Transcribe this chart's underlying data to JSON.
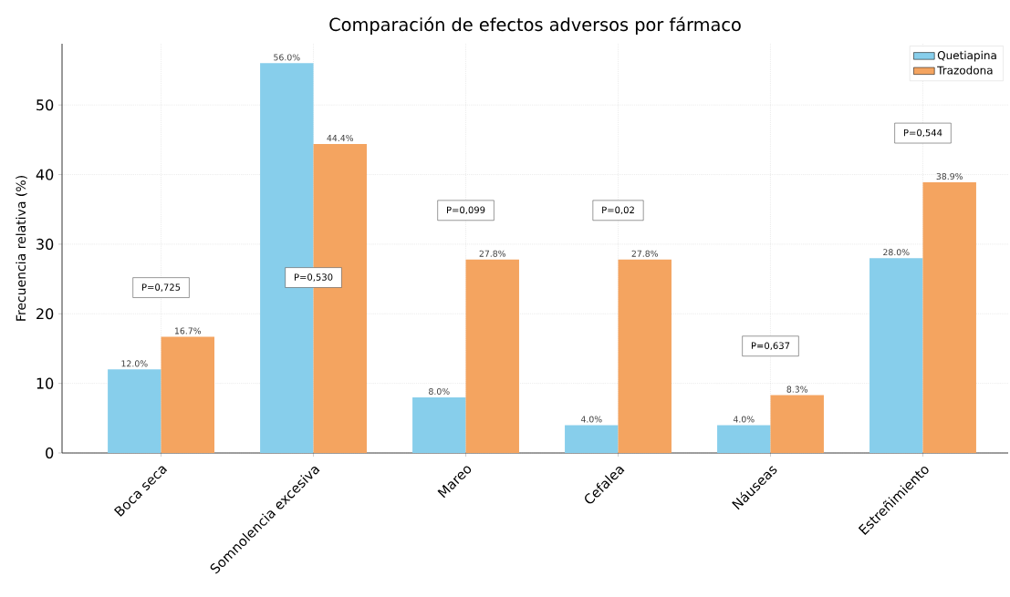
{
  "chart_data": {
    "type": "bar",
    "title": "Comparación de efectos adversos por fármaco",
    "ylabel": "Frecuencia relativa (%)",
    "categories": [
      "Boca seca",
      "Somnolencia excesiva",
      "Mareo",
      "Cefalea",
      "Náuseas",
      "Estreñimiento"
    ],
    "series": [
      {
        "name": "Quetiapina",
        "color": "#87ceeb",
        "values": [
          12.0,
          56.0,
          8.0,
          4.0,
          4.0,
          28.0
        ],
        "value_labels": [
          "12.0%",
          "56.0%",
          "8.0%",
          "4.0%",
          "4.0%",
          "28.0%"
        ]
      },
      {
        "name": "Trazodona",
        "color": "#f4a460",
        "values": [
          16.7,
          44.4,
          27.8,
          27.8,
          8.3,
          38.9
        ],
        "value_labels": [
          "16.7%",
          "44.4%",
          "27.8%",
          "27.8%",
          "8.3%",
          "38.9%"
        ]
      }
    ],
    "ylim": [
      0,
      58.8
    ],
    "yticks": [
      0,
      10,
      20,
      30,
      40,
      50
    ],
    "grid": true,
    "legend": "top right",
    "annotations": [
      "P=0,725",
      "P=0,530",
      "P=0,099",
      "P=0,02",
      "P=0,637",
      "P=0,544"
    ]
  }
}
